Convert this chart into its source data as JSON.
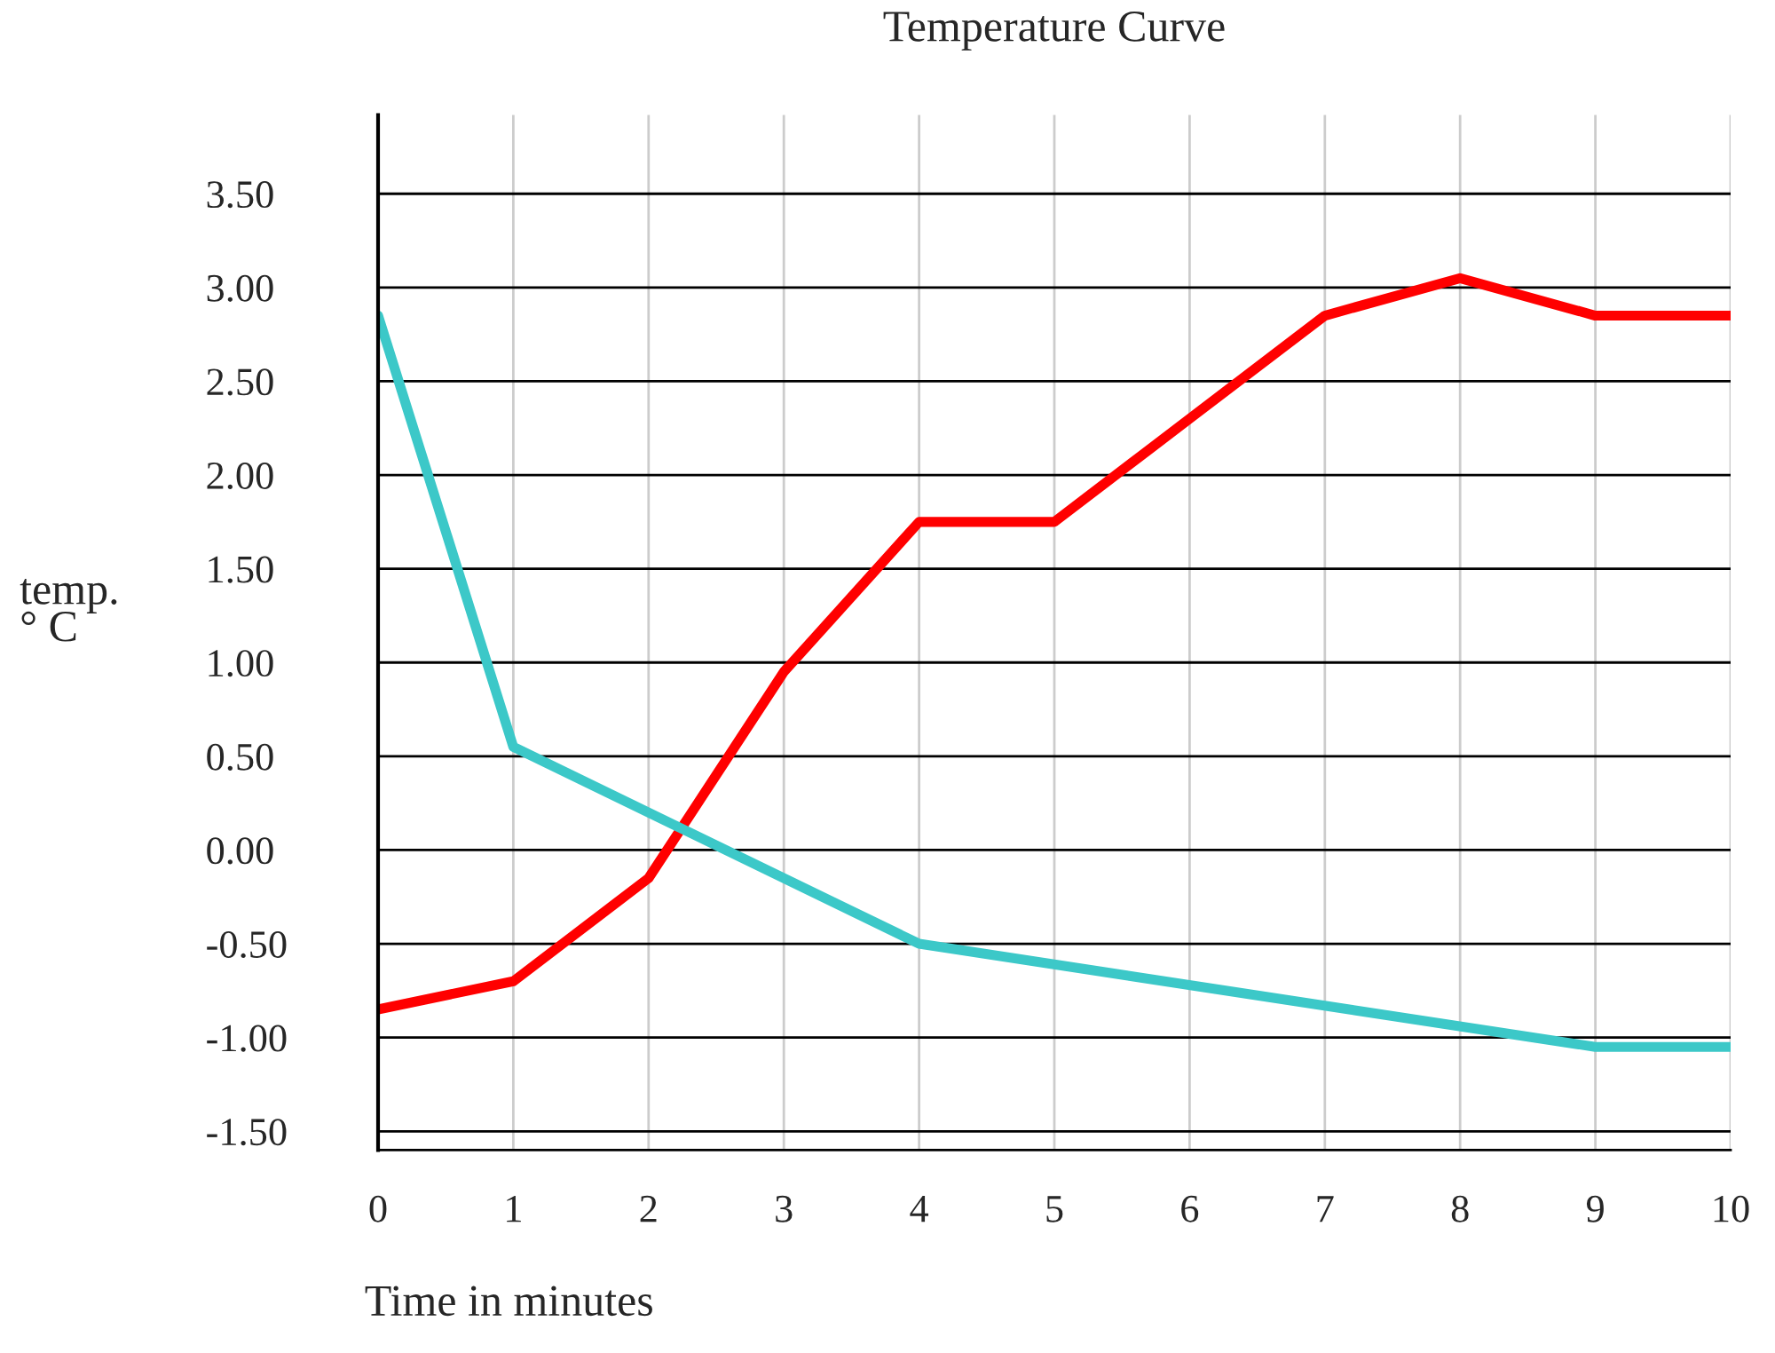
{
  "chart_data": {
    "type": "line",
    "title": "Temperature Curve",
    "xlabel": "Time in minutes",
    "ylabel": "temp.\n° C",
    "xlim": [
      0,
      10
    ],
    "xticks": [
      0,
      1,
      2,
      3,
      4,
      5,
      6,
      7,
      8,
      9,
      10
    ],
    "ylim": [
      -1.6,
      3.92
    ],
    "yticks": [
      {
        "value": -1.5,
        "label": "-1.50"
      },
      {
        "value": -1,
        "label": "-1.00"
      },
      {
        "value": -0.5,
        "label": "-0.50"
      },
      {
        "value": 0,
        "label": "0.00"
      },
      {
        "value": 0.5,
        "label": "0.50"
      },
      {
        "value": 1,
        "label": "1.00"
      },
      {
        "value": 1.5,
        "label": "1.50"
      },
      {
        "value": 2,
        "label": "2.00"
      },
      {
        "value": 2.5,
        "label": "2.50"
      },
      {
        "value": 3,
        "label": "3.00"
      },
      {
        "value": 3.5,
        "label": "3.50"
      }
    ],
    "grid": true,
    "line_style": "solid",
    "series": [
      {
        "color": "#ff0000",
        "x": [
          0,
          1,
          2,
          3,
          4,
          5,
          6,
          7,
          8,
          9,
          10
        ],
        "values": [
          -0.85,
          -0.7,
          -0.15,
          0.95,
          1.75,
          1.75,
          2.3,
          2.85,
          3.05,
          2.85,
          2.85
        ]
      },
      {
        "color": "#3cc8c8",
        "x": [
          0,
          1,
          4,
          9,
          10
        ],
        "values": [
          2.85,
          0.55,
          -0.5,
          -1.05,
          -1.05
        ]
      }
    ]
  }
}
